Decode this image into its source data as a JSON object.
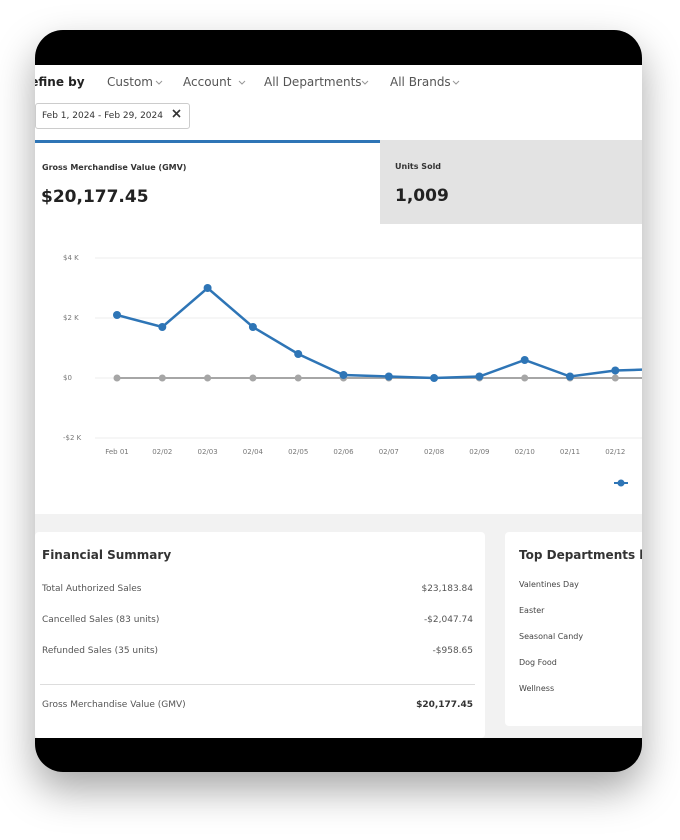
{
  "filters": {
    "label": "Refine by",
    "options": [
      "Custom",
      "Account",
      "All Departments",
      "All Brands"
    ],
    "date_range": "Feb 1, 2024 - Feb 29, 2024"
  },
  "tabs": [
    {
      "label": "Gross Merchandise Value (GMV)",
      "value": "$20,177.45"
    },
    {
      "label": "Units Sold",
      "value": "1,009"
    }
  ],
  "chart_data": {
    "type": "line",
    "categories": [
      "Feb 01",
      "02/02",
      "02/03",
      "02/04",
      "02/05",
      "02/06",
      "02/07",
      "02/08",
      "02/09",
      "02/10",
      "02/11",
      "02/12",
      null
    ],
    "series": [
      {
        "color": "#2e75b6",
        "values": [
          2100,
          1700,
          3000,
          1700,
          800,
          100,
          50,
          0,
          50,
          600,
          50,
          250,
          300
        ]
      },
      {
        "color": "#a6a6a6",
        "values": [
          0,
          0,
          0,
          0,
          0,
          0,
          0,
          0,
          0,
          0,
          0,
          0,
          0
        ]
      }
    ],
    "ylim": [
      -2000,
      4000
    ],
    "yticks": [
      {
        "value": 4000,
        "label": "$4 K"
      },
      {
        "value": 2000,
        "label": "$2 K"
      },
      {
        "value": 0,
        "label": "$0"
      },
      {
        "value": -2000,
        "label": "-$2 K"
      }
    ],
    "grid": true
  },
  "financial_summary": {
    "title": "Financial Summary",
    "rows": [
      {
        "label": "Total Authorized Sales",
        "value": "$23,183.84"
      },
      {
        "label": "Cancelled Sales (83 units)",
        "value": "-$2,047.74"
      },
      {
        "label": "Refunded Sales (35 units)",
        "value": "-$958.65"
      }
    ],
    "total": {
      "label": "Gross Merchandise Value (GMV)",
      "value": "$20,177.45"
    }
  },
  "top_departments": {
    "title": "Top Departments by",
    "items": [
      "Valentines Day",
      "Easter",
      "Seasonal Candy",
      "Dog Food",
      "Wellness"
    ]
  }
}
